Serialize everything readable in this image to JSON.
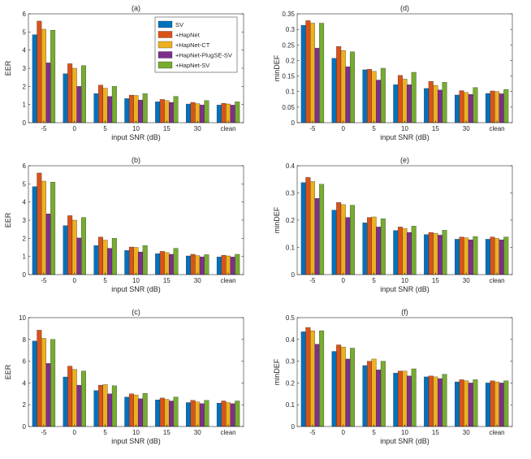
{
  "legend": {
    "entries": [
      "SV",
      "+HapNet",
      "+HapNet-CT",
      "+HapNet-PlugSE-SV",
      "+HapNet-SV"
    ],
    "colors": [
      "#0072BD",
      "#D95319",
      "#EDB120",
      "#7E2F8E",
      "#77AC30"
    ],
    "placement": "inside-top-right of panel (a)"
  },
  "chart_data": [
    {
      "type": "bar",
      "title": "(a)",
      "xlabel": "input SNR (dB)",
      "ylabel": "EER",
      "categories": [
        "-5",
        "0",
        "5",
        "10",
        "15",
        "30",
        "clean"
      ],
      "ylim": [
        0,
        6
      ],
      "yticks": [
        "0",
        "1",
        "2",
        "3",
        "4",
        "5",
        "6"
      ],
      "grid": false,
      "series": [
        {
          "name": "SV",
          "values": [
            4.85,
            2.7,
            1.6,
            1.33,
            1.15,
            1.03,
            0.97
          ]
        },
        {
          "name": "+HapNet",
          "values": [
            5.6,
            3.25,
            2.07,
            1.52,
            1.28,
            1.12,
            1.07
          ]
        },
        {
          "name": "+HapNet-CT",
          "values": [
            5.15,
            3.0,
            1.9,
            1.5,
            1.22,
            1.05,
            1.03
          ]
        },
        {
          "name": "+HapNet-PlugSE-SV",
          "values": [
            3.3,
            2.0,
            1.45,
            1.25,
            1.12,
            0.98,
            0.97
          ]
        },
        {
          "name": "+HapNet-SV",
          "values": [
            5.1,
            3.15,
            2.0,
            1.6,
            1.45,
            1.22,
            1.15
          ]
        }
      ]
    },
    {
      "type": "bar",
      "title": "(d)",
      "xlabel": "input SNR (dB)",
      "ylabel": "minDEF",
      "categories": [
        "-5",
        "0",
        "5",
        "10",
        "15",
        "30",
        "clean"
      ],
      "ylim": [
        0,
        0.35
      ],
      "yticks": [
        "0",
        "0.05",
        "0.1",
        "0.15",
        "0.2",
        "0.25",
        "0.3",
        "0.35"
      ],
      "grid": false,
      "series": [
        {
          "name": "SV",
          "values": [
            0.313,
            0.207,
            0.17,
            0.122,
            0.11,
            0.089,
            0.094
          ]
        },
        {
          "name": "+HapNet",
          "values": [
            0.328,
            0.245,
            0.172,
            0.152,
            0.133,
            0.103,
            0.102
          ]
        },
        {
          "name": "+HapNet-CT",
          "values": [
            0.32,
            0.232,
            0.165,
            0.14,
            0.12,
            0.097,
            0.1
          ]
        },
        {
          "name": "+HapNet-PlugSE-SV",
          "values": [
            0.24,
            0.18,
            0.137,
            0.122,
            0.105,
            0.091,
            0.093
          ]
        },
        {
          "name": "+HapNet-SV",
          "values": [
            0.32,
            0.228,
            0.175,
            0.162,
            0.13,
            0.113,
            0.107
          ]
        }
      ]
    },
    {
      "type": "bar",
      "title": "(b)",
      "xlabel": "input SNR (dB)",
      "ylabel": "EER",
      "categories": [
        "-5",
        "0",
        "5",
        "10",
        "15",
        "30",
        "clean"
      ],
      "ylim": [
        0,
        6
      ],
      "yticks": [
        "0",
        "1",
        "2",
        "3",
        "4",
        "5",
        "6"
      ],
      "grid": false,
      "series": [
        {
          "name": "SV",
          "values": [
            4.85,
            2.7,
            1.6,
            1.33,
            1.15,
            1.03,
            0.97
          ]
        },
        {
          "name": "+HapNet",
          "values": [
            5.6,
            3.25,
            2.07,
            1.52,
            1.28,
            1.12,
            1.07
          ]
        },
        {
          "name": "+HapNet-CT",
          "values": [
            5.15,
            3.0,
            1.9,
            1.5,
            1.22,
            1.05,
            1.03
          ]
        },
        {
          "name": "+HapNet-PlugSE-SV",
          "values": [
            3.35,
            2.02,
            1.45,
            1.25,
            1.12,
            0.98,
            0.97
          ]
        },
        {
          "name": "+HapNet-SV",
          "values": [
            5.1,
            3.15,
            2.0,
            1.6,
            1.45,
            1.1,
            1.12
          ]
        }
      ]
    },
    {
      "type": "bar",
      "title": "(e)",
      "xlabel": "input SNR (dB)",
      "ylabel": "minDEF",
      "categories": [
        "-5",
        "0",
        "5",
        "10",
        "15",
        "30",
        "clean"
      ],
      "ylim": [
        0,
        0.4
      ],
      "yticks": [
        "0",
        "0.1",
        "0.2",
        "0.3",
        "0.4"
      ],
      "grid": false,
      "series": [
        {
          "name": "SV",
          "values": [
            0.338,
            0.237,
            0.19,
            0.162,
            0.147,
            0.13,
            0.13
          ]
        },
        {
          "name": "+HapNet",
          "values": [
            0.357,
            0.265,
            0.21,
            0.175,
            0.155,
            0.138,
            0.138
          ]
        },
        {
          "name": "+HapNet-CT",
          "values": [
            0.342,
            0.257,
            0.212,
            0.17,
            0.152,
            0.135,
            0.133
          ]
        },
        {
          "name": "+HapNet-PlugSE-SV",
          "values": [
            0.28,
            0.21,
            0.175,
            0.155,
            0.145,
            0.128,
            0.128
          ]
        },
        {
          "name": "+HapNet-SV",
          "values": [
            0.332,
            0.255,
            0.205,
            0.178,
            0.163,
            0.14,
            0.138
          ]
        }
      ]
    },
    {
      "type": "bar",
      "title": "(c)",
      "xlabel": "input SNR (dB)",
      "ylabel": "EER",
      "categories": [
        "-5",
        "0",
        "5",
        "10",
        "15",
        "30",
        "clean"
      ],
      "ylim": [
        0,
        10
      ],
      "yticks": [
        "0",
        "2",
        "4",
        "6",
        "8",
        "10"
      ],
      "grid": false,
      "series": [
        {
          "name": "SV",
          "values": [
            7.85,
            4.55,
            3.3,
            2.7,
            2.45,
            2.2,
            2.15
          ]
        },
        {
          "name": "+HapNet",
          "values": [
            8.85,
            5.55,
            3.8,
            3.0,
            2.62,
            2.4,
            2.35
          ]
        },
        {
          "name": "+HapNet-CT",
          "values": [
            8.1,
            5.25,
            3.85,
            2.9,
            2.5,
            2.25,
            2.2
          ]
        },
        {
          "name": "+HapNet-PlugSE-SV",
          "values": [
            5.8,
            3.8,
            3.0,
            2.55,
            2.35,
            2.1,
            2.1
          ]
        },
        {
          "name": "+HapNet-SV",
          "values": [
            8.0,
            5.1,
            3.75,
            3.05,
            2.7,
            2.4,
            2.35
          ]
        }
      ]
    },
    {
      "type": "bar",
      "title": "(f)",
      "xlabel": "input SNR (dB)",
      "ylabel": "minDEF",
      "categories": [
        "-5",
        "0",
        "5",
        "10",
        "15",
        "30",
        "clean"
      ],
      "ylim": [
        0,
        0.5
      ],
      "yticks": [
        "0",
        "0.1",
        "0.2",
        "0.3",
        "0.4",
        "0.5"
      ],
      "grid": false,
      "series": [
        {
          "name": "SV",
          "values": [
            0.435,
            0.345,
            0.28,
            0.245,
            0.228,
            0.205,
            0.2
          ]
        },
        {
          "name": "+HapNet",
          "values": [
            0.455,
            0.375,
            0.3,
            0.255,
            0.232,
            0.215,
            0.21
          ]
        },
        {
          "name": "+HapNet-CT",
          "values": [
            0.44,
            0.365,
            0.31,
            0.255,
            0.228,
            0.21,
            0.205
          ]
        },
        {
          "name": "+HapNet-PlugSE-SV",
          "values": [
            0.378,
            0.31,
            0.26,
            0.232,
            0.22,
            0.2,
            0.2
          ]
        },
        {
          "name": "+HapNet-SV",
          "values": [
            0.44,
            0.36,
            0.3,
            0.265,
            0.24,
            0.215,
            0.21
          ]
        }
      ]
    }
  ]
}
